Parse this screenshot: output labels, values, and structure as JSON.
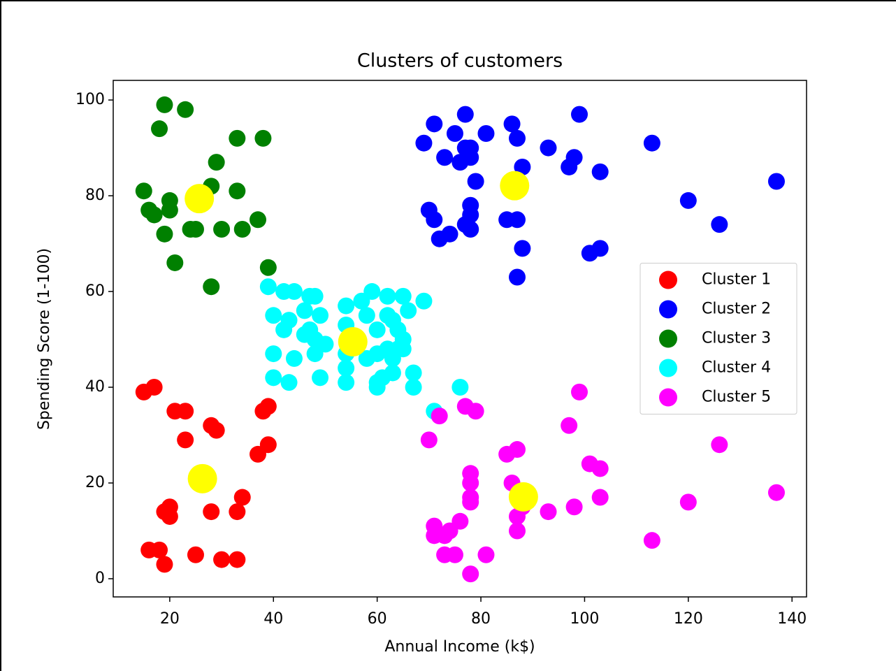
{
  "chart_data": {
    "type": "scatter",
    "title": "Clusters of customers",
    "x_label": "Annual Income (k$)",
    "y_label": "Spending Score (1-100)",
    "xlim": [
      9.1,
      142.8
    ],
    "ylim": [
      -3.8,
      104.1
    ],
    "xticks": [
      20,
      40,
      60,
      80,
      100,
      120,
      140
    ],
    "yticks": [
      0,
      20,
      40,
      60,
      80,
      100
    ],
    "legend": "center right",
    "series": [
      {
        "name": "Cluster 1",
        "color": "#ff0000",
        "x": [
          15,
          17,
          21,
          23,
          23,
          28,
          29,
          38,
          39,
          37,
          39,
          20,
          19,
          20,
          28,
          33,
          34,
          16,
          18,
          19,
          25,
          30,
          33
        ],
        "y": [
          39,
          40,
          35,
          35,
          29,
          32,
          31,
          35,
          36,
          26,
          28,
          15,
          14,
          13,
          14,
          14,
          17,
          6,
          6,
          3,
          5,
          4,
          4
        ]
      },
      {
        "name": "Cluster 2",
        "color": "#0000ff",
        "x": [
          69,
          71,
          73,
          75,
          76,
          77,
          77,
          78,
          78,
          79,
          81,
          86,
          87,
          88,
          93,
          97,
          98,
          99,
          103,
          113,
          120,
          126,
          137,
          70,
          71,
          72,
          74,
          77,
          78,
          78,
          78,
          85,
          87,
          88,
          87,
          101,
          103
        ],
        "y": [
          91,
          95,
          88,
          93,
          87,
          97,
          90,
          88,
          90,
          83,
          93,
          95,
          92,
          86,
          90,
          86,
          88,
          97,
          85,
          91,
          79,
          74,
          83,
          77,
          75,
          71,
          72,
          74,
          78,
          76,
          73,
          75,
          75,
          69,
          63,
          68,
          69
        ]
      },
      {
        "name": "Cluster 3",
        "color": "#008000",
        "x": [
          15,
          16,
          17,
          18,
          19,
          19,
          20,
          20,
          21,
          23,
          24,
          25,
          28,
          28,
          29,
          30,
          33,
          33,
          34,
          37,
          38,
          39
        ],
        "y": [
          81,
          77,
          76,
          94,
          99,
          72,
          79,
          77,
          66,
          98,
          73,
          73,
          82,
          61,
          87,
          73,
          92,
          81,
          73,
          75,
          92,
          65
        ]
      },
      {
        "name": "Cluster 4",
        "color": "#00ffff",
        "x": [
          39,
          40,
          40,
          40,
          42,
          42,
          43,
          43,
          44,
          44,
          46,
          46,
          47,
          47,
          48,
          48,
          48,
          49,
          49,
          50,
          54,
          54,
          54,
          54,
          54,
          57,
          58,
          58,
          59,
          60,
          60,
          60,
          60,
          61,
          62,
          62,
          62,
          63,
          63,
          63,
          64,
          64,
          65,
          65,
          65,
          66,
          67,
          67,
          69,
          71,
          76
        ],
        "y": [
          61,
          55,
          47,
          42,
          60,
          52,
          41,
          54,
          60,
          46,
          51,
          56,
          59,
          52,
          59,
          47,
          50,
          55,
          42,
          49,
          57,
          53,
          47,
          44,
          41,
          58,
          55,
          46,
          60,
          52,
          47,
          41,
          40,
          42,
          59,
          55,
          48,
          54,
          46,
          43,
          52,
          48,
          59,
          50,
          48,
          56,
          43,
          40,
          58,
          35,
          40
        ]
      },
      {
        "name": "Cluster 5",
        "color": "#ff00ff",
        "x": [
          70,
          71,
          71,
          72,
          73,
          73,
          74,
          75,
          76,
          77,
          78,
          78,
          78,
          78,
          78,
          79,
          81,
          85,
          86,
          87,
          87,
          87,
          88,
          93,
          97,
          98,
          99,
          101,
          103,
          103,
          113,
          120,
          126,
          137
        ],
        "y": [
          29,
          11,
          9,
          34,
          5,
          9,
          10,
          5,
          12,
          36,
          22,
          20,
          17,
          16,
          1,
          35,
          5,
          26,
          20,
          27,
          13,
          10,
          15,
          14,
          32,
          15,
          39,
          24,
          23,
          17,
          8,
          16,
          28,
          18
        ]
      }
    ],
    "centroids": {
      "color": "#ffff00",
      "x": [
        26.3,
        86.5,
        25.7,
        55.3,
        88.2
      ],
      "y": [
        20.9,
        82.1,
        79.4,
        49.5,
        17.1
      ]
    }
  }
}
